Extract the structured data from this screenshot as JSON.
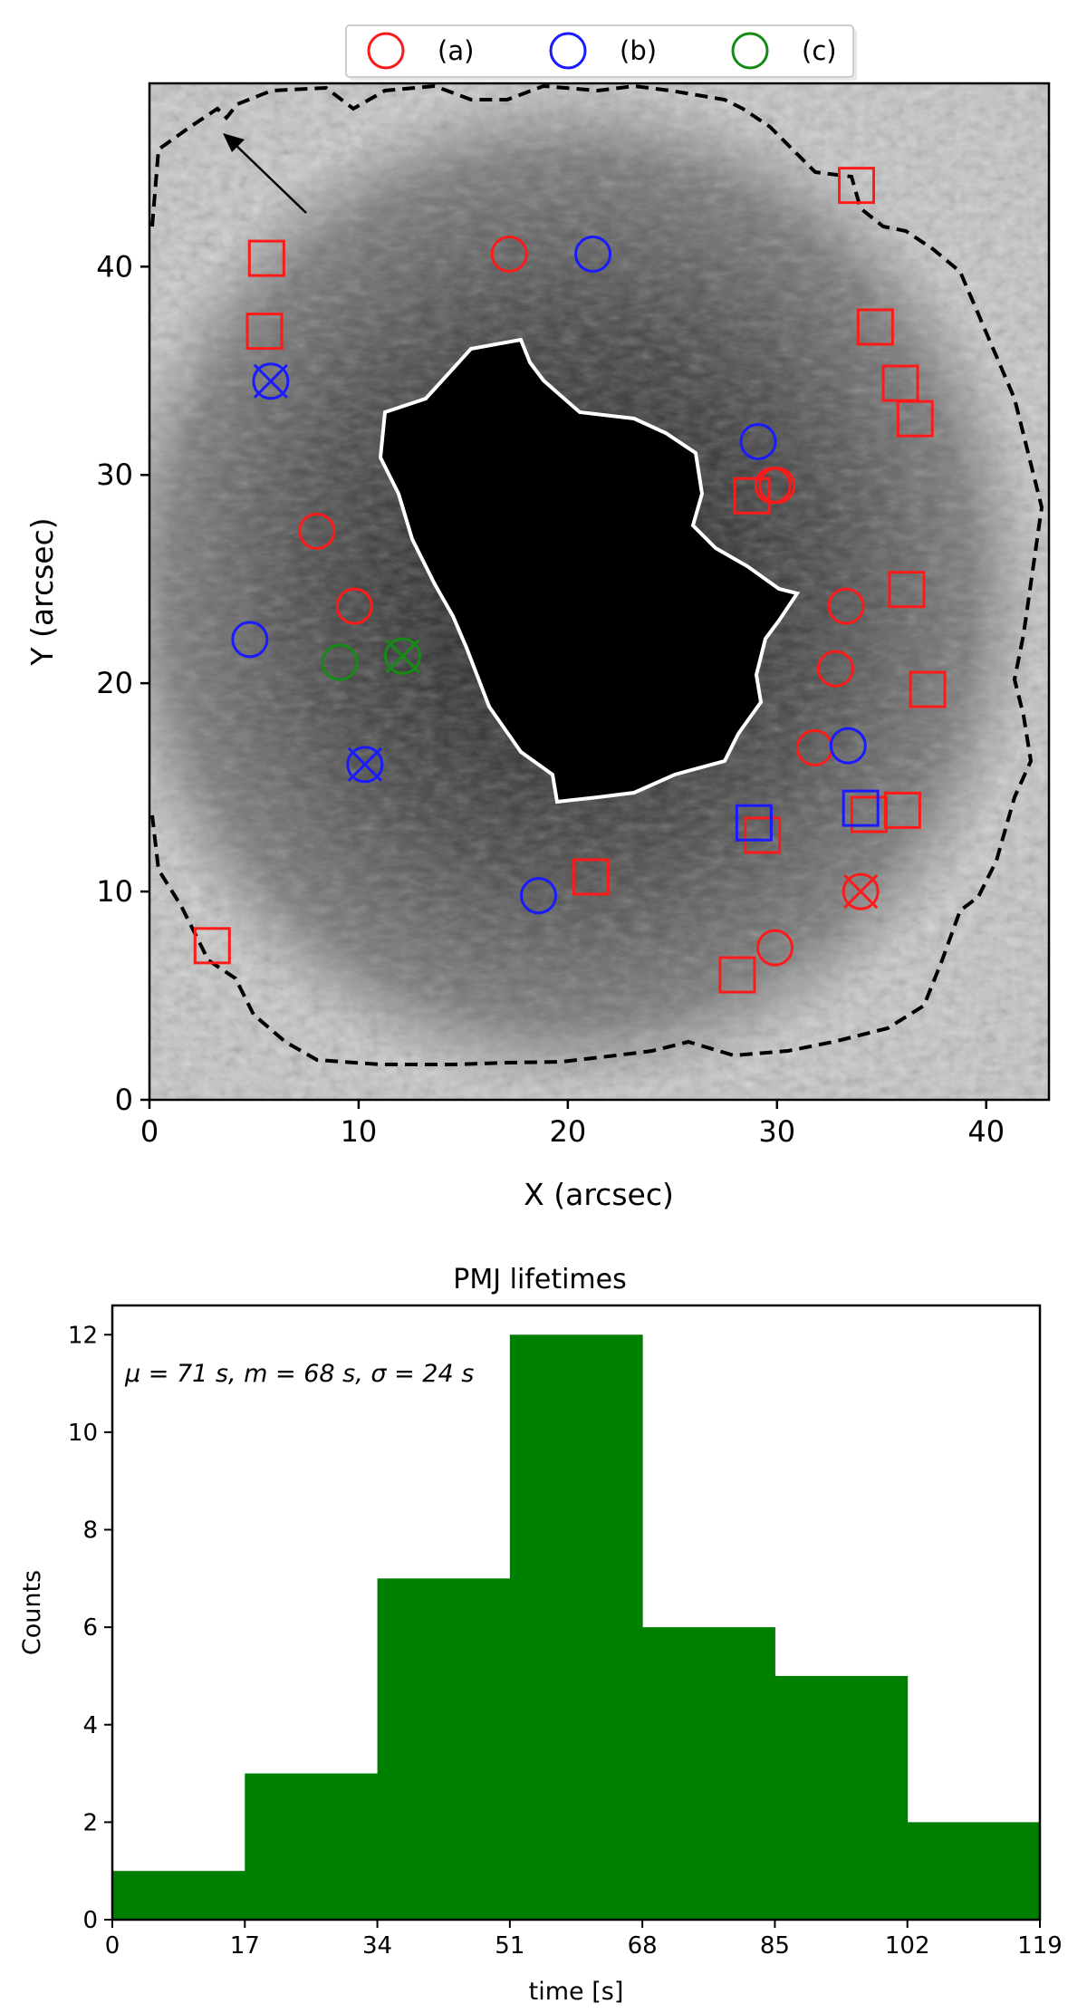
{
  "chart_data": [
    {
      "type": "scatter",
      "xlabel": "X (arcsec)",
      "ylabel": "Y (arcsec)",
      "xlim": [
        0,
        43
      ],
      "ylim": [
        0,
        48.8
      ],
      "xticks": [
        0,
        10,
        20,
        30,
        40
      ],
      "yticks": [
        0,
        10,
        20,
        30,
        40
      ],
      "legend": {
        "placement": "top-center",
        "entries": [
          {
            "label": "(a)",
            "color": "#ff1a1a"
          },
          {
            "label": "(b)",
            "color": "#1a1aff"
          },
          {
            "label": "(c)",
            "color": "#158a15"
          }
        ]
      },
      "markers": {
        "circles_a": [
          [
            17.2,
            40.6
          ],
          [
            8.0,
            27.3
          ],
          [
            9.8,
            23.7
          ],
          [
            29.8,
            29.5
          ],
          [
            30.0,
            29.5
          ],
          [
            33.3,
            23.7
          ],
          [
            32.8,
            20.7
          ],
          [
            31.8,
            16.9
          ],
          [
            29.9,
            7.3
          ]
        ],
        "circles_b": [
          [
            21.2,
            40.6
          ],
          [
            29.1,
            31.6
          ],
          [
            4.8,
            22.1
          ],
          [
            18.6,
            9.8
          ],
          [
            33.4,
            17.0
          ]
        ],
        "circles_c": [
          [
            9.1,
            21.0
          ]
        ],
        "crossed_a": [
          [
            34.0,
            10.0
          ]
        ],
        "crossed_b": [
          [
            5.8,
            34.5
          ],
          [
            10.3,
            16.1
          ]
        ],
        "crossed_c": [
          [
            12.1,
            21.3
          ]
        ],
        "squares_a": [
          [
            5.6,
            40.4
          ],
          [
            5.5,
            36.9
          ],
          [
            33.8,
            43.9
          ],
          [
            34.7,
            37.1
          ],
          [
            35.9,
            34.4
          ],
          [
            36.6,
            32.7
          ],
          [
            28.8,
            29.0
          ],
          [
            36.2,
            24.5
          ],
          [
            37.2,
            19.7
          ],
          [
            36.0,
            13.9
          ],
          [
            34.4,
            13.7
          ],
          [
            29.3,
            12.7
          ],
          [
            21.1,
            10.7
          ],
          [
            3.0,
            7.4
          ],
          [
            28.1,
            6.0
          ]
        ],
        "squares_b": [
          [
            28.9,
            13.3
          ],
          [
            34.0,
            14.0
          ]
        ]
      }
    },
    {
      "type": "bar",
      "title": "PMJ lifetimes",
      "annotation": "μ = 71 s, m = 68 s, σ = 24 s",
      "xlabel": "time [s]",
      "ylabel": "Counts",
      "bin_edges": [
        0,
        17,
        34,
        51,
        68,
        85,
        102,
        119
      ],
      "values": [
        1,
        3,
        7,
        12,
        6,
        5,
        2
      ],
      "xticks": [
        0,
        17,
        34,
        51,
        68,
        85,
        102,
        119
      ],
      "yticks": [
        0,
        2,
        4,
        6,
        8,
        10,
        12
      ],
      "xlim": [
        0,
        119
      ],
      "ylim": [
        0,
        12.6
      ],
      "bar_color": "#008000"
    }
  ]
}
